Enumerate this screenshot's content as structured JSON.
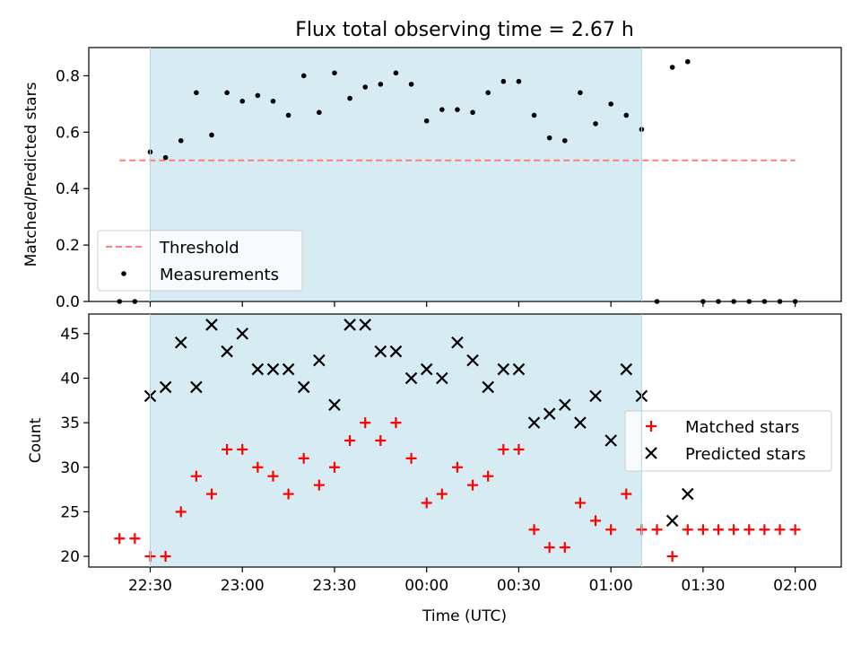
{
  "title": "Flux total observing time = 2.67 h",
  "xlabel": "Time (UTC)",
  "x_ticks": [
    "22:30",
    "23:00",
    "23:30",
    "00:00",
    "00:30",
    "01:00",
    "01:30",
    "02:00"
  ],
  "colors": {
    "shade": "#add8e6",
    "threshold": "#ff7f7f",
    "measure": "#000000",
    "matched": "#ff0000",
    "predicted": "#000000"
  },
  "chart_data": [
    {
      "type": "scatter",
      "ylabel": "Matched/Predicted stars",
      "ylim": [
        0,
        0.9
      ],
      "y_ticks": [
        "0.0",
        "0.2",
        "0.4",
        "0.6",
        "0.8"
      ],
      "xlim_minutes": [
        -20,
        225
      ],
      "shaded_interval": [
        "22:30",
        "01:10"
      ],
      "threshold": {
        "name": "Threshold",
        "value": 0.5,
        "x_range": [
          "22:20",
          "02:00"
        ]
      },
      "legend": {
        "position": "lower left",
        "entries": [
          "Threshold",
          "Measurements"
        ]
      },
      "series": [
        {
          "name": "Measurements",
          "x": [
            "22:20",
            "22:25",
            "22:30",
            "22:35",
            "22:40",
            "22:45",
            "22:50",
            "22:55",
            "23:00",
            "23:05",
            "23:10",
            "23:15",
            "23:20",
            "23:25",
            "23:30",
            "23:35",
            "23:40",
            "23:45",
            "23:50",
            "23:55",
            "00:00",
            "00:05",
            "00:10",
            "00:15",
            "00:20",
            "00:25",
            "00:30",
            "00:35",
            "00:40",
            "00:45",
            "00:50",
            "00:55",
            "01:00",
            "01:05",
            "01:10",
            "01:15",
            "01:20",
            "01:25",
            "01:30",
            "01:35",
            "01:40",
            "01:45",
            "01:50",
            "01:55",
            "02:00"
          ],
          "y": [
            0.0,
            0.0,
            0.53,
            0.51,
            0.57,
            0.74,
            0.59,
            0.74,
            0.71,
            0.73,
            0.71,
            0.66,
            0.8,
            0.67,
            0.81,
            0.72,
            0.76,
            0.77,
            0.81,
            0.77,
            0.64,
            0.68,
            0.68,
            0.67,
            0.74,
            0.78,
            0.78,
            0.66,
            0.58,
            0.57,
            0.74,
            0.63,
            0.7,
            0.66,
            0.61,
            0.0,
            0.83,
            0.85,
            0.0,
            0.0,
            0.0,
            0.0,
            0.0,
            0.0,
            0.0
          ]
        }
      ]
    },
    {
      "type": "scatter",
      "ylabel": "Count",
      "ylim": [
        18.8,
        47.2
      ],
      "y_ticks": [
        "20",
        "25",
        "30",
        "35",
        "40",
        "45"
      ],
      "xlim_minutes": [
        -20,
        225
      ],
      "shaded_interval": [
        "22:30",
        "01:10"
      ],
      "legend": {
        "position": "center right",
        "entries": [
          "Matched stars",
          "Predicted stars"
        ]
      },
      "series": [
        {
          "name": "Matched stars",
          "marker": "+",
          "x": [
            "22:20",
            "22:25",
            "22:30",
            "22:35",
            "22:40",
            "22:45",
            "22:50",
            "22:55",
            "23:00",
            "23:05",
            "23:10",
            "23:15",
            "23:20",
            "23:25",
            "23:30",
            "23:35",
            "23:40",
            "23:45",
            "23:50",
            "23:55",
            "00:00",
            "00:05",
            "00:10",
            "00:15",
            "00:20",
            "00:25",
            "00:30",
            "00:35",
            "00:40",
            "00:45",
            "00:50",
            "00:55",
            "01:00",
            "01:05",
            "01:10",
            "01:15",
            "01:20",
            "01:25",
            "01:30",
            "01:35",
            "01:40",
            "01:45",
            "01:50",
            "01:55",
            "02:00"
          ],
          "y": [
            22,
            22,
            20,
            20,
            25,
            29,
            27,
            32,
            32,
            30,
            29,
            27,
            31,
            28,
            30,
            33,
            35,
            33,
            35,
            31,
            26,
            27,
            30,
            28,
            29,
            32,
            32,
            23,
            21,
            21,
            26,
            24,
            23,
            27,
            23,
            23,
            20,
            23,
            23,
            23,
            23,
            23,
            23,
            23,
            23
          ]
        },
        {
          "name": "Predicted stars",
          "marker": "x",
          "x": [
            "22:30",
            "22:35",
            "22:40",
            "22:45",
            "22:50",
            "22:55",
            "23:00",
            "23:05",
            "23:10",
            "23:15",
            "23:20",
            "23:25",
            "23:30",
            "23:35",
            "23:40",
            "23:45",
            "23:50",
            "23:55",
            "00:00",
            "00:05",
            "00:10",
            "00:15",
            "00:20",
            "00:25",
            "00:30",
            "00:35",
            "00:40",
            "00:45",
            "00:50",
            "00:55",
            "01:00",
            "01:05",
            "01:10",
            "01:20",
            "01:25"
          ],
          "y": [
            38,
            39,
            44,
            39,
            46,
            43,
            45,
            41,
            41,
            41,
            39,
            42,
            37,
            46,
            46,
            43,
            43,
            40,
            41,
            40,
            44,
            42,
            39,
            41,
            41,
            35,
            36,
            37,
            35,
            38,
            33,
            41,
            38,
            24,
            27
          ]
        }
      ]
    }
  ]
}
